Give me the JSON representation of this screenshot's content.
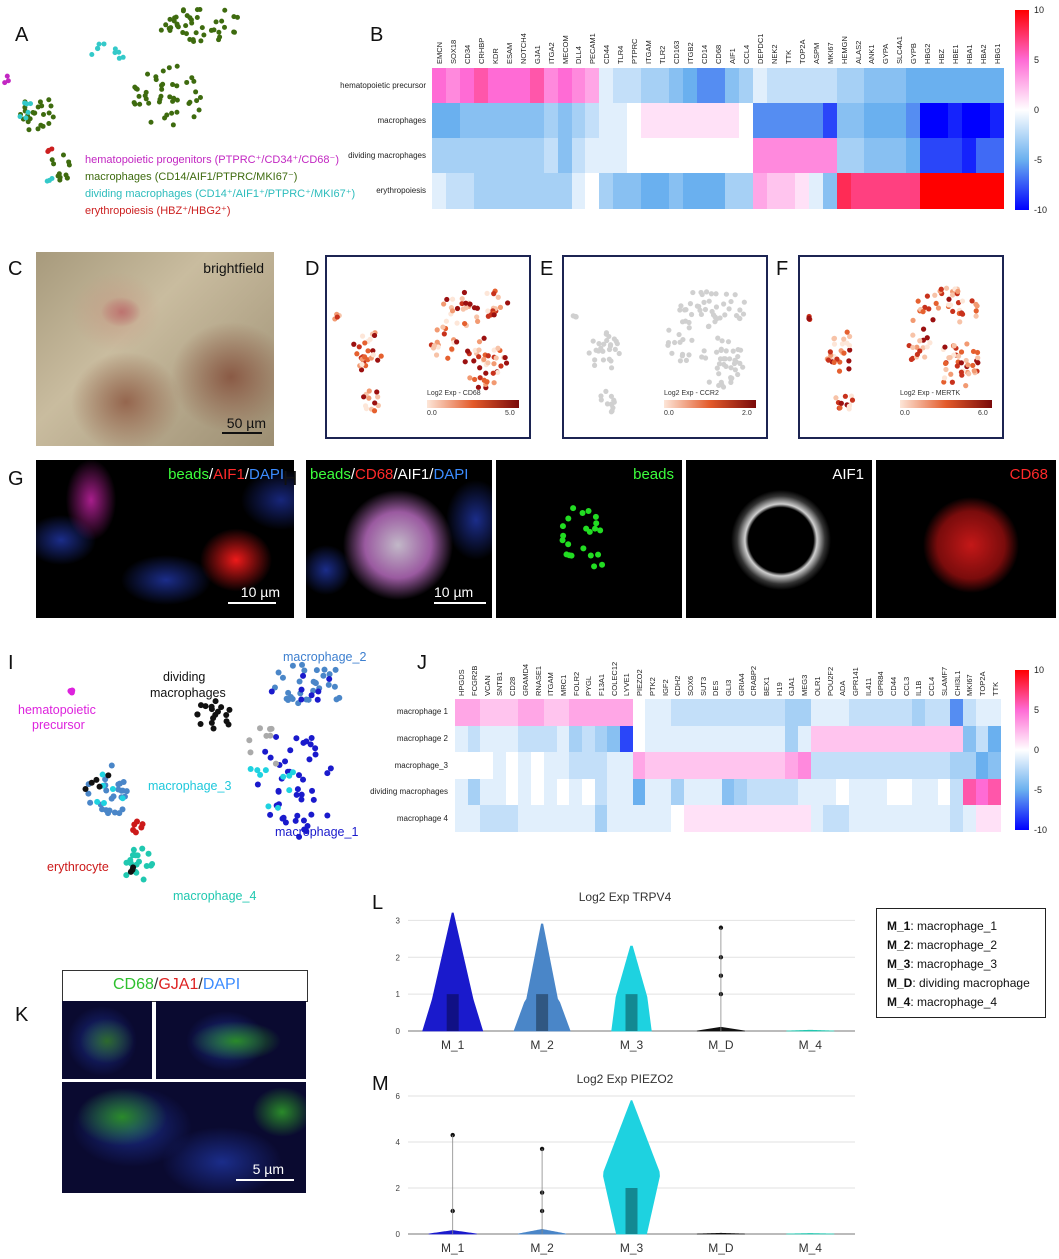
{
  "panels": {
    "A": "A",
    "B": "B",
    "C": "C",
    "D": "D",
    "E": "E",
    "F": "F",
    "G": "G",
    "H": "H",
    "I": "I",
    "J": "J",
    "K": "K",
    "L": "L",
    "M": "M"
  },
  "panelA": {
    "legend": [
      {
        "text": "hematopoietic progenitors (PTPRC⁺/CD34⁺/CD68⁻)",
        "color": "#c227c2"
      },
      {
        "text": "macrophages (CD14/AIF1/PTPRC/MKI67⁻)",
        "color": "#3e6b0f"
      },
      {
        "text": "dividing macrophages (CD14⁺/AIF1⁺/PTPRC⁺/MKI67⁺)",
        "color": "#34c9c9"
      },
      {
        "text": "erythropoiesis (HBZ⁺/HBG2⁺)",
        "color": "#cc1f1f"
      }
    ]
  },
  "panelB": {
    "genes": [
      "EMCN",
      "SOX18",
      "CD34",
      "CRHBP",
      "KDR",
      "ESAM",
      "NOTCH4",
      "GJA1",
      "ITGA2",
      "MECOM",
      "DLL4",
      "PECAM1",
      "CD44",
      "TLR4",
      "PTPRC",
      "ITGAM",
      "TLR2",
      "CD163",
      "ITGB2",
      "CD14",
      "CD68",
      "AIF1",
      "CCL4",
      "DEPDC1",
      "NEK2",
      "TTK",
      "TOP2A",
      "ASPM",
      "MKI67",
      "HEMGN",
      "ALAS2",
      "ANK1",
      "GYPA",
      "SLC4A1",
      "GYPB",
      "HBG2",
      "HBZ",
      "HBE1",
      "HBA1",
      "HBA2",
      "HBG1"
    ],
    "rows": [
      "hematopoietic precursor",
      "macrophages",
      "dividing macrophages",
      "erythropoiesis"
    ],
    "values": [
      [
        5,
        4,
        5,
        6,
        5,
        5,
        5,
        6,
        4,
        5,
        4,
        3,
        -1,
        -2,
        -2,
        -3,
        -3,
        -4,
        -5,
        -6,
        -6,
        -4,
        -3,
        -1,
        -2,
        -2,
        -2,
        -2,
        -2,
        -3,
        -3,
        -4,
        -4,
        -4,
        -5,
        -5,
        -5,
        -5,
        -5,
        -5,
        -5
      ],
      [
        -5,
        -5,
        -4,
        -4,
        -4,
        -4,
        -4,
        -4,
        -3,
        -4,
        -3,
        -2,
        -1,
        -1,
        0,
        1,
        1,
        1,
        1,
        1,
        1,
        1,
        0,
        -6,
        -6,
        -6,
        -6,
        -6,
        -8,
        -4,
        -4,
        -5,
        -5,
        -5,
        -6,
        -10,
        -10,
        -9,
        -10,
        -10,
        -9
      ],
      [
        -3,
        -3,
        -3,
        -3,
        -3,
        -3,
        -3,
        -3,
        -2,
        -4,
        -2,
        -1,
        -1,
        -1,
        0,
        0,
        0,
        0,
        0,
        0,
        0,
        0,
        0,
        4,
        4,
        4,
        4,
        4,
        4,
        -3,
        -3,
        -4,
        -4,
        -4,
        -5,
        -8,
        -8,
        -8,
        -9,
        -7,
        -7
      ],
      [
        -1,
        -2,
        -2,
        -3,
        -3,
        -3,
        -3,
        -3,
        -3,
        -3,
        -1,
        0,
        -3,
        -4,
        -4,
        -5,
        -5,
        -4,
        -5,
        -5,
        -5,
        -3,
        -3,
        3,
        2,
        2,
        1,
        -1,
        -4,
        8,
        7,
        7,
        7,
        7,
        7,
        10,
        10,
        10,
        10,
        10,
        10
      ]
    ],
    "colorbar": {
      "min": -10,
      "max": 10,
      "ticks": [
        "10",
        "5",
        "0",
        "-5",
        "-10"
      ]
    }
  },
  "panelC": {
    "label": "brightfield",
    "scale": "50 µm"
  },
  "panelD": {
    "title": "Log2 Exp - CD68",
    "min": "0.0",
    "max": "5.0"
  },
  "panelE": {
    "title": "Log2 Exp - CCR2",
    "min": "0.0",
    "max": "2.0"
  },
  "panelF": {
    "title": "Log2 Exp - MERTK",
    "min": "0.0",
    "max": "6.0"
  },
  "panelG": {
    "ch1": "beads",
    "sep1": "/",
    "ch2": "AIF1",
    "sep2": "/",
    "ch3": "DAPI",
    "scale": "10 µm"
  },
  "panelH": {
    "ch1": "beads",
    "sep1": "/",
    "ch2": "CD68",
    "sep2": "/",
    "ch3": "AIF1",
    "sep3": "/",
    "ch4": "DAPI",
    "scale": "10 µm",
    "beads": "beads",
    "aif1": "AIF1",
    "cd68": "CD68"
  },
  "panelI": {
    "labels": {
      "macrophage_2": "macrophage_2",
      "dividing": "dividing",
      "dividing2": "macrophages",
      "hema": "hematopoietic",
      "hema2": "precursor",
      "macrophage_3": "macrophage_3",
      "erythrocyte": "erythrocyte",
      "macrophage_1": "macrophage_1",
      "macrophage_4": "macrophage_4"
    }
  },
  "panelJ": {
    "genes": [
      "HPGDS",
      "FCGR2B",
      "VCAN",
      "SNTB1",
      "CD28",
      "GRAMD4",
      "RNASE1",
      "ITGAM",
      "MRC1",
      "FOLR2",
      "PYGL",
      "F13A1",
      "COLEC12",
      "LYVE1",
      "PIEZO2",
      "PTK2",
      "IGF2",
      "CDH2",
      "SOX6",
      "SUT3",
      "DES",
      "GLI3",
      "GRIA4",
      "CRABP2",
      "BEX1",
      "H19",
      "GJA1",
      "MEG3",
      "OLR1",
      "POU2F2",
      "ADA",
      "GPR141",
      "IL411",
      "GPR84",
      "CD44",
      "CCL3",
      "IL1B",
      "CCL4",
      "SLAMF7",
      "CHI3L1",
      "MKI67",
      "TOP2A",
      "TTK"
    ],
    "rows": [
      "macrophage 1",
      "macrophage 2",
      "macrophage_3",
      "dividing macrophages",
      "macrophage 4"
    ],
    "values": [
      [
        3,
        3,
        2,
        2,
        2,
        3,
        3,
        2,
        2,
        3,
        3,
        3,
        3,
        3,
        0,
        -1,
        -1,
        -2,
        -2,
        -2,
        -2,
        -2,
        -2,
        -2,
        -2,
        -2,
        -3,
        -3,
        -1,
        -1,
        -1,
        -2,
        -2,
        -2,
        -2,
        -2,
        -3,
        -2,
        -2,
        -6,
        -2,
        -1,
        -1
      ],
      [
        -1,
        -2,
        -1,
        -1,
        -1,
        -2,
        -2,
        -2,
        -1,
        -3,
        -2,
        -3,
        -4,
        -8,
        0,
        -1,
        -1,
        -1,
        -1,
        -1,
        -1,
        -1,
        -1,
        -1,
        -1,
        -1,
        -3,
        -1,
        2,
        2,
        2,
        2,
        2,
        2,
        2,
        2,
        2,
        2,
        2,
        2,
        -4,
        -2,
        -5
      ],
      [
        0,
        0,
        0,
        -1,
        0,
        -1,
        0,
        -1,
        -1,
        -2,
        -2,
        -2,
        -1,
        -1,
        3,
        2,
        2,
        2,
        2,
        2,
        2,
        2,
        2,
        2,
        2,
        2,
        3,
        4,
        -2,
        -2,
        -2,
        -2,
        -2,
        -2,
        -2,
        -2,
        -2,
        -2,
        -2,
        -3,
        -3,
        -5,
        -4
      ],
      [
        -1,
        -3,
        -1,
        -1,
        0,
        -1,
        0,
        -1,
        0,
        -1,
        0,
        -2,
        -1,
        -1,
        -5,
        -1,
        -1,
        -3,
        -1,
        -1,
        -1,
        -4,
        -3,
        -2,
        -2,
        -2,
        -2,
        -1,
        -1,
        -1,
        0,
        -1,
        -1,
        -1,
        0,
        0,
        -1,
        -1,
        0,
        -2,
        6,
        5,
        6
      ],
      [
        -1,
        -1,
        -2,
        -2,
        -2,
        -1,
        -1,
        -1,
        -1,
        -1,
        -1,
        -3,
        -1,
        -1,
        -1,
        -1,
        -1,
        0,
        1,
        1,
        1,
        1,
        1,
        1,
        1,
        1,
        1,
        1,
        -1,
        -2,
        -2,
        -1,
        -1,
        -1,
        -1,
        -1,
        -1,
        -1,
        -1,
        -2,
        -1,
        1,
        1
      ]
    ],
    "colorbar": {
      "min": -10,
      "max": 10,
      "ticks": [
        "10",
        "5",
        "0",
        "-5",
        "-10"
      ]
    }
  },
  "panelK": {
    "ch1": "CD68",
    "sep1": "/",
    "ch2": "GJA1",
    "sep2": "/",
    "ch3": "DAPI",
    "scale": "5 µm"
  },
  "panelL": {
    "title": "Log2 Exp TRPV4",
    "yticks": [
      "3",
      "2",
      "1",
      "0"
    ],
    "groups": [
      "M_1",
      "M_2",
      "M_3",
      "M_D",
      "M_4"
    ]
  },
  "panelM": {
    "title": "Log2 Exp PIEZO2",
    "yticks": [
      "6",
      "4",
      "2",
      "0"
    ],
    "groups": [
      "M_1",
      "M_2",
      "M_3",
      "M_D",
      "M_4"
    ]
  },
  "mlegend": [
    {
      "key": "M_1",
      "text": ": macrophage_1"
    },
    {
      "key": "M_2",
      "text": ": macrophage_2"
    },
    {
      "key": "M_3",
      "text": ": macrophage_3"
    },
    {
      "key": "M_D",
      "text": ": dividing macrophage"
    },
    {
      "key": "M_4",
      "text": ": macrophage_4"
    }
  ],
  "colors": {
    "m1": "#1a1acc",
    "m2": "#4a86c8",
    "m3": "#1ed2e0",
    "mD": "#111111",
    "m4": "#20c8b0",
    "hema": "#dd22dd",
    "ery": "#cc1a1a"
  }
}
